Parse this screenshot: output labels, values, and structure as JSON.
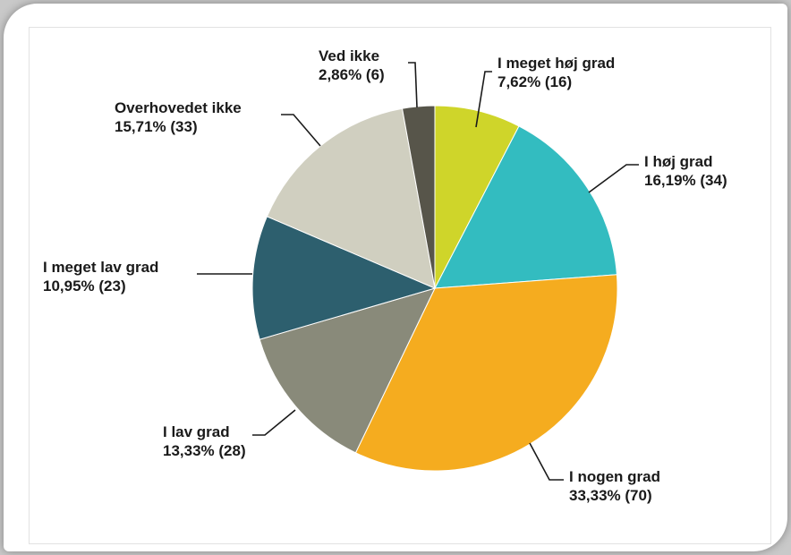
{
  "chart_data": {
    "type": "pie",
    "title": "",
    "start_angle_deg": 0,
    "direction": "clockwise",
    "slices": [
      {
        "label": "I meget høj grad",
        "value": 7.62,
        "count": 16,
        "value_text": "7,62% (16)",
        "color": "#cfd52a"
      },
      {
        "label": "I høj grad",
        "value": 16.19,
        "count": 34,
        "value_text": "16,19% (34)",
        "color": "#33bcc0"
      },
      {
        "label": "I nogen grad",
        "value": 33.33,
        "count": 70,
        "value_text": "33,33% (70)",
        "color": "#f5ac1f"
      },
      {
        "label": "I lav grad",
        "value": 13.33,
        "count": 28,
        "value_text": "13,33% (28)",
        "color": "#898a7a"
      },
      {
        "label": "I meget lav grad",
        "value": 10.95,
        "count": 23,
        "value_text": "10,95% (23)",
        "color": "#2d5f6e"
      },
      {
        "label": "Overhovedet ikke",
        "value": 15.71,
        "count": 33,
        "value_text": "15,71% (33)",
        "color": "#d0cfc0"
      },
      {
        "label": "Ved ikke",
        "value": 2.86,
        "count": 6,
        "value_text": "2,86% (6)",
        "color": "#57554a"
      }
    ]
  }
}
